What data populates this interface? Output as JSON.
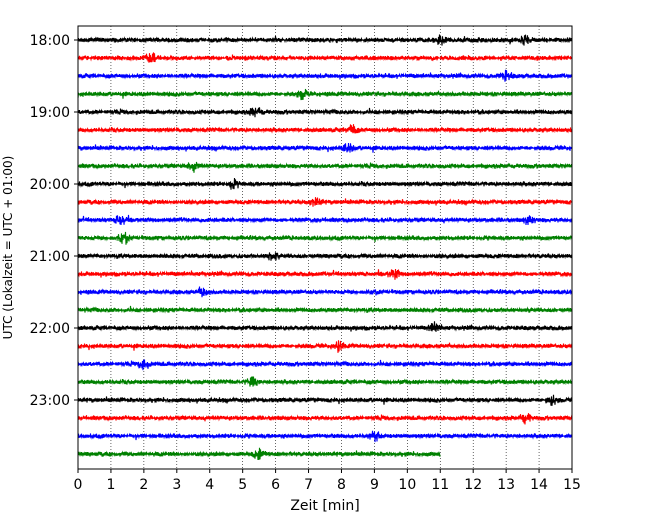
{
  "chart_data": {
    "type": "line",
    "title": "",
    "xlabel": "Zeit  [min]",
    "ylabel": "UTC (Lokalzeit = UTC + 01:00)",
    "xlim": [
      0,
      15
    ],
    "x_ticks": [
      0,
      1,
      2,
      3,
      4,
      5,
      6,
      7,
      8,
      9,
      10,
      11,
      12,
      13,
      14,
      15
    ],
    "x_tick_labels": [
      "0",
      "1",
      "2",
      "3",
      "4",
      "5",
      "6",
      "7",
      "8",
      "9",
      "10",
      "11",
      "12",
      "13",
      "14",
      "15"
    ],
    "y_tick_labels": [
      "18:00",
      "19:00",
      "20:00",
      "21:00",
      "22:00",
      "23:00"
    ],
    "grid": "vertical dotted",
    "trace_colors": [
      "#000000",
      "#ff0000",
      "#0000ff",
      "#008000"
    ],
    "trace_start_times": [
      "18:00",
      "18:15",
      "18:30",
      "18:45",
      "19:00",
      "19:15",
      "19:30",
      "19:45",
      "20:00",
      "20:15",
      "20:30",
      "20:45",
      "21:00",
      "21:15",
      "21:30",
      "21:45",
      "22:00",
      "22:15",
      "22:30",
      "22:45",
      "23:00",
      "23:15",
      "23:30",
      "23:45"
    ],
    "last_trace_end_minute": 11,
    "events": [
      {
        "trace": 0,
        "minute": 11.0
      },
      {
        "trace": 0,
        "minute": 13.6
      },
      {
        "trace": 1,
        "minute": 2.2
      },
      {
        "trace": 2,
        "minute": 13.0
      },
      {
        "trace": 3,
        "minute": 6.8
      },
      {
        "trace": 4,
        "minute": 5.4
      },
      {
        "trace": 5,
        "minute": 8.3
      },
      {
        "trace": 6,
        "minute": 8.2
      },
      {
        "trace": 7,
        "minute": 3.5
      },
      {
        "trace": 8,
        "minute": 4.7
      },
      {
        "trace": 9,
        "minute": 7.2
      },
      {
        "trace": 10,
        "minute": 1.3
      },
      {
        "trace": 10,
        "minute": 13.7
      },
      {
        "trace": 11,
        "minute": 1.4
      },
      {
        "trace": 12,
        "minute": 5.9
      },
      {
        "trace": 13,
        "minute": 9.6
      },
      {
        "trace": 14,
        "minute": 3.8
      },
      {
        "trace": 16,
        "minute": 10.8
      },
      {
        "trace": 17,
        "minute": 7.9
      },
      {
        "trace": 18,
        "minute": 2.0
      },
      {
        "trace": 19,
        "minute": 5.3
      },
      {
        "trace": 20,
        "minute": 14.4
      },
      {
        "trace": 21,
        "minute": 13.6
      },
      {
        "trace": 22,
        "minute": 9.0
      },
      {
        "trace": 23,
        "minute": 5.5
      }
    ]
  }
}
